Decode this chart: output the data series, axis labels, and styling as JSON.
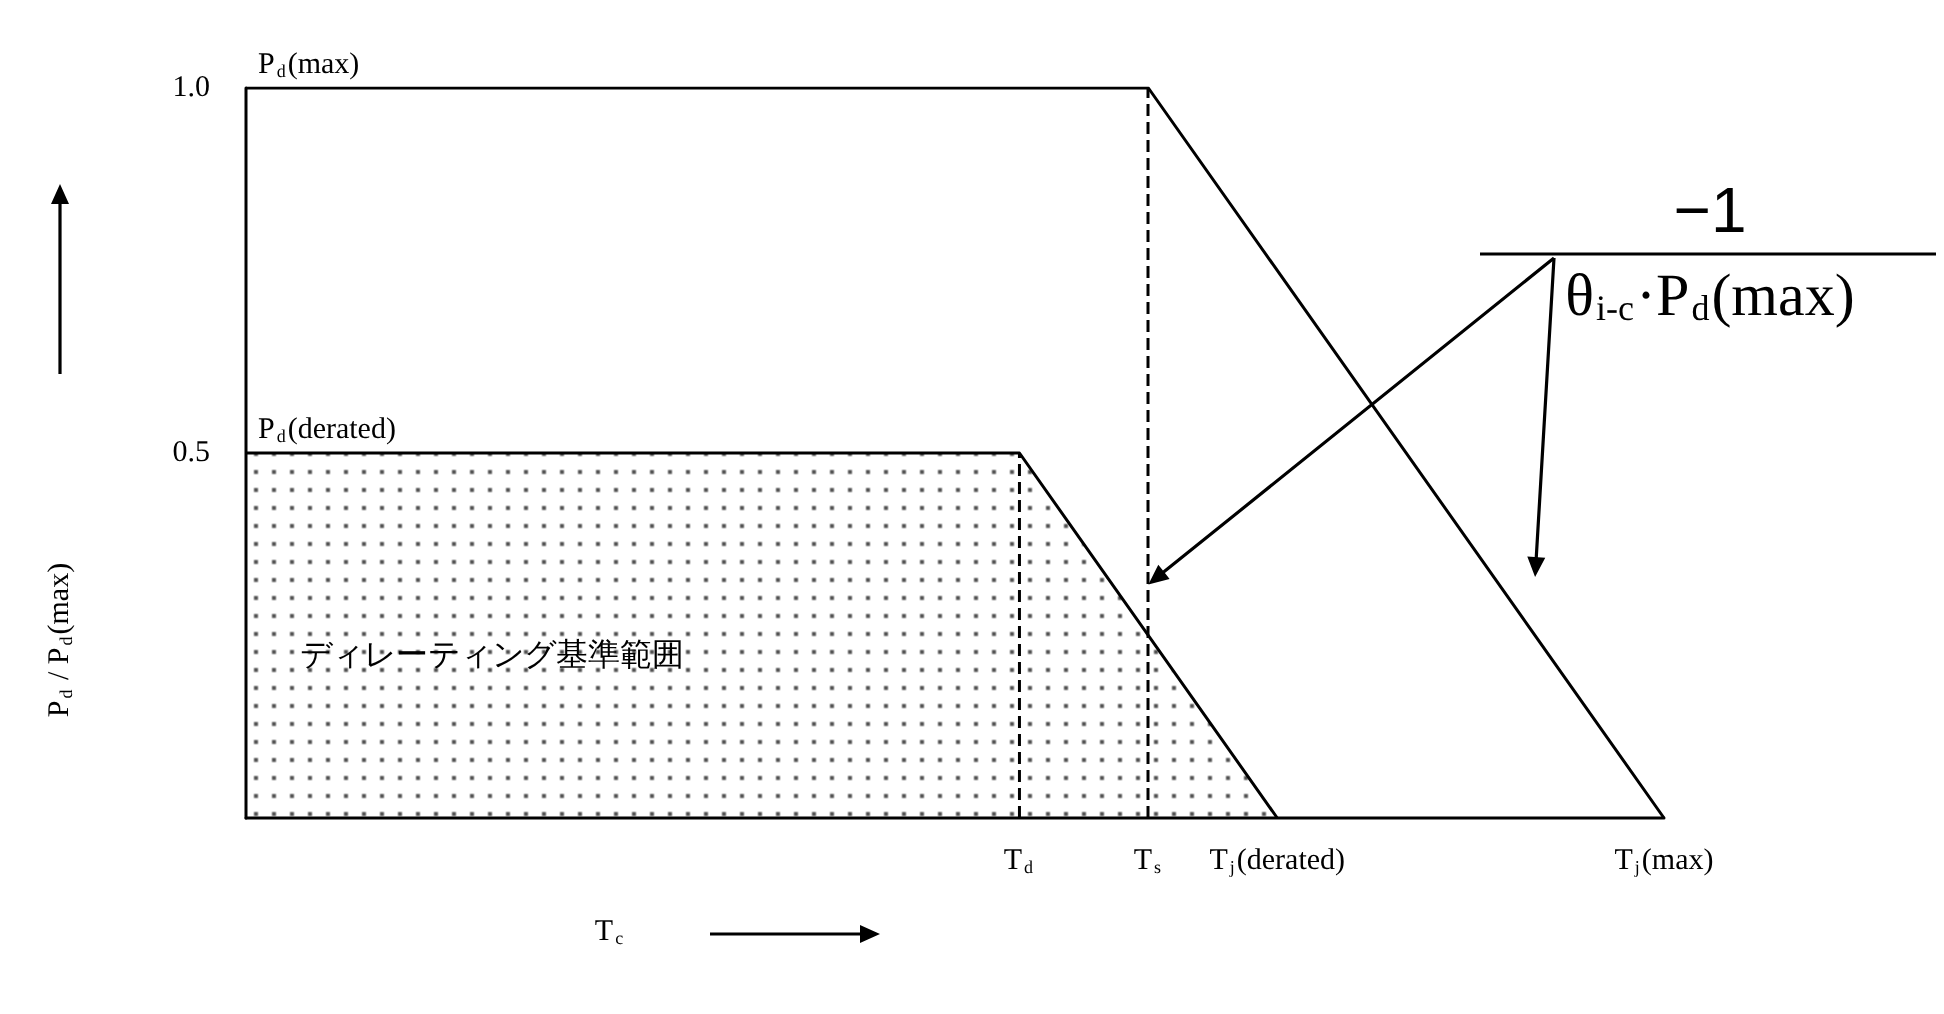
{
  "chart_data": {
    "type": "line",
    "xlabel": "T$_{c}$",
    "ylabel": "P$_{d}$ / P$_{d}$(max)",
    "categories": [
      null,
      null,
      null,
      null,
      null,
      null,
      "T$_{d}$",
      "T$_{s}$",
      "T$_{j}$(derated)",
      null,
      null,
      "T$_{j}$(max)"
    ],
    "ylim": [
      0,
      1
    ],
    "yticks": [
      0.5,
      {
        "value": 1,
        "label": "1.0"
      }
    ],
    "series": [
      {
        "name": "P$_{d}$(max)",
        "color": "#000000",
        "values": [
          1,
          null,
          null,
          null,
          null,
          null,
          null,
          1,
          null,
          null,
          null,
          0
        ]
      },
      {
        "name": "P$_{d}$(derated)",
        "type": "area",
        "color": "#000000",
        "values": [
          0.5,
          null,
          null,
          null,
          null,
          null,
          0.5,
          null,
          0,
          null,
          null,
          null
        ]
      },
      {
        "color": "#000000",
        "line_style": "dashed",
        "x": [
          "T$_{d}$",
          "T$_{d}$"
        ],
        "values": [
          0,
          0.5
        ]
      }
    ],
    "ref_lines": [
      {
        "axis": "x",
        "value": "T$_{s}$",
        "color": "#000000",
        "line_style": "dashed"
      }
    ],
    "annotations": [
      "ディレーティング基準範囲",
      "−1",
      "θ$_{i-c}$·P$_{d}$(max)"
    ],
    "grid": false,
    "legend": false,
    "marker": "none",
    "line_style": "solid"
  }
}
